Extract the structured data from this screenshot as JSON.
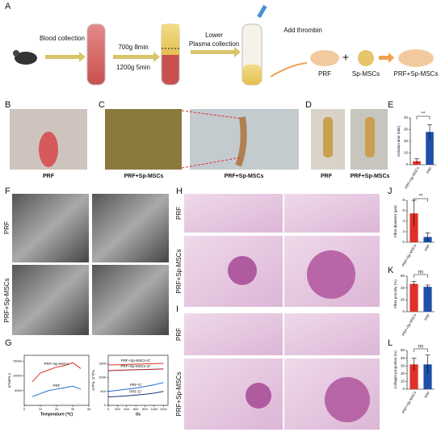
{
  "figure": {
    "panel_labels": [
      "A",
      "B",
      "C",
      "D",
      "E",
      "F",
      "G",
      "H",
      "I",
      "J",
      "K",
      "L"
    ],
    "scheme": {
      "blood": "Blood collection",
      "spin1": "700g 8min",
      "spin2": "1200g 5min",
      "lower": "Lower",
      "plasma": "Plasma collection",
      "thrombin": "Add thrombin",
      "prf": "PRF",
      "plus": "+",
      "sp": "Sp-MSCs",
      "combo": "PRF+Sp-MSCs"
    },
    "captions": {
      "B": "PRF",
      "C1": "PRF+Sp-MSCs",
      "C2": "PRF+Sp-MSCs",
      "D1": "PRF",
      "D2": "PRF+Sp-MSCs"
    },
    "row_labels": {
      "F1": "PRF",
      "F2": "PRF+Sp-MSCs",
      "H1": "PRF",
      "H2": "PRF+Sp-MSCs",
      "I1": "PRF",
      "I2": "PRF+Sp-MSCs"
    }
  },
  "chart_data": [
    {
      "type": "bar",
      "ylabel": "Gelation time (min)",
      "categories": [
        "PRF+Sp-MSCs",
        "PRF"
      ],
      "values": [
        3,
        28
      ],
      "errors": [
        2,
        6
      ],
      "colors": [
        "#e0302a",
        "#1f4fa8"
      ],
      "ylim": [
        0,
        40
      ],
      "yticks": [
        0,
        10,
        20,
        30,
        40
      ],
      "annotation": "**"
    },
    {
      "type": "line",
      "ylabel": "η*/mPa s",
      "xlabel": "Temperature (℃)",
      "x": [
        5,
        10,
        15,
        20,
        25,
        30,
        35
      ],
      "xlim": [
        0,
        40
      ],
      "xticks": [
        0,
        10,
        20,
        30,
        40
      ],
      "ylim": [
        0,
        17000
      ],
      "yticks": [
        5000,
        10000,
        15000
      ],
      "series": [
        {
          "name": "PRF+Sp-MSCs",
          "color": "#e0302a",
          "values": [
            8000,
            11000,
            12000,
            13000,
            13500,
            14500,
            12500
          ]
        },
        {
          "name": "PRF",
          "color": "#1f6fd0",
          "values": [
            3000,
            4000,
            5000,
            5500,
            6000,
            6500,
            5500
          ]
        }
      ]
    },
    {
      "type": "line",
      "ylabel": "G'/Pa, G''/Pa",
      "xlabel": "t/s",
      "x": [
        0,
        200,
        400,
        600,
        800,
        1000,
        1200
      ],
      "xlim": [
        0,
        1300
      ],
      "xticks": [
        0,
        200,
        400,
        600,
        800,
        1000,
        1200
      ],
      "ylim": [
        0,
        1800
      ],
      "yticks": [
        0,
        500,
        1000,
        1500
      ],
      "series": [
        {
          "name": "PRF+Sp-MSCs-G'",
          "color": "#e0302a",
          "values": [
            1450,
            1460,
            1470,
            1480,
            1490,
            1500,
            1510
          ]
        },
        {
          "name": "PRF+Sp-MSCs-G''",
          "color": "#a01818",
          "values": [
            1250,
            1260,
            1270,
            1280,
            1290,
            1300,
            1310
          ]
        },
        {
          "name": "PRF-G'",
          "color": "#1f6fd0",
          "values": [
            500,
            540,
            580,
            620,
            680,
            740,
            820
          ]
        },
        {
          "name": "PRF-G''",
          "color": "#1a2f80",
          "values": [
            300,
            320,
            340,
            370,
            400,
            440,
            500
          ]
        }
      ]
    },
    {
      "type": "bar",
      "ylabel": "Fiber diameter (μm)",
      "categories": [
        "PRF+Sp-MSCs",
        "PRF"
      ],
      "values": [
        5.5,
        1
      ],
      "errors": [
        2.5,
        0.8
      ],
      "colors": [
        "#e0302a",
        "#1f4fa8"
      ],
      "ylim": [
        0,
        8
      ],
      "yticks": [
        0,
        2,
        4,
        6,
        8
      ],
      "annotation": "**"
    },
    {
      "type": "bar",
      "ylabel": "Fiber porosity (%)",
      "categories": [
        "PRF+Sp-MSCs",
        "PRF"
      ],
      "values": [
        47,
        42
      ],
      "errors": [
        4,
        3
      ],
      "colors": [
        "#e0302a",
        "#1f4fa8"
      ],
      "ylim": [
        0,
        60
      ],
      "yticks": [
        0,
        20,
        40,
        60
      ],
      "annotation": "ns"
    },
    {
      "type": "bar",
      "ylabel": "Collagen proportion (%)",
      "categories": [
        "PRF+Sp-MSCs",
        "PRF"
      ],
      "values": [
        32,
        32
      ],
      "errors": [
        8,
        12
      ],
      "colors": [
        "#e0302a",
        "#1f4fa8"
      ],
      "ylim": [
        0,
        50
      ],
      "yticks": [
        0,
        10,
        20,
        30,
        40,
        50
      ],
      "annotation": "ns"
    }
  ]
}
